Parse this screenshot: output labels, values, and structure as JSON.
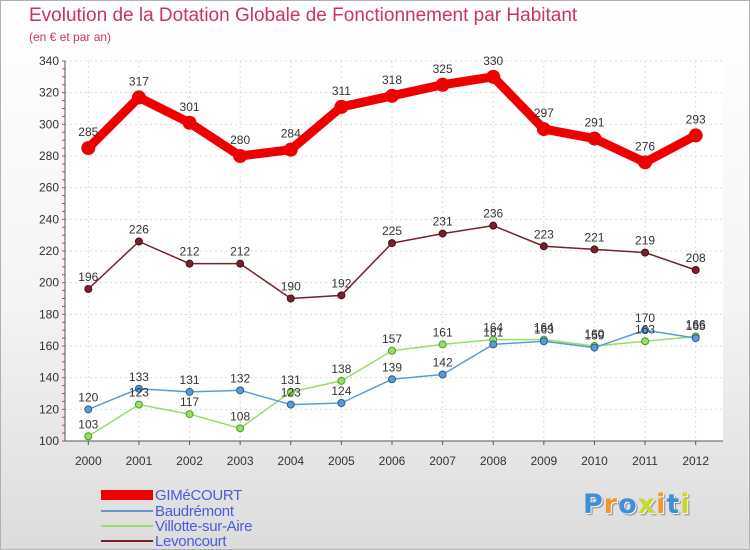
{
  "chart_data": {
    "type": "line",
    "title": "Evolution de la Dotation Globale de Fonctionnement par Habitant",
    "subtitle": "(en € et par an)",
    "x": [
      "2000",
      "2001",
      "2002",
      "2003",
      "2004",
      "2005",
      "2006",
      "2007",
      "2008",
      "2009",
      "2010",
      "2011",
      "2012"
    ],
    "ylim": [
      100,
      340
    ],
    "yticks": [
      100,
      120,
      140,
      160,
      180,
      200,
      220,
      240,
      260,
      280,
      300,
      320,
      340
    ],
    "grid": true,
    "legend_position": "bottom-left",
    "series": [
      {
        "name": "GIMéCOURT",
        "color": "#ee0000",
        "values": [
          285,
          317,
          301,
          280,
          284,
          311,
          318,
          325,
          330,
          297,
          291,
          276,
          293
        ]
      },
      {
        "name": "Baudrémont",
        "color": "#5b9bd5",
        "values": [
          120,
          133,
          131,
          132,
          123,
          124,
          139,
          142,
          161,
          163,
          159,
          170,
          165
        ]
      },
      {
        "name": "Villotte-sur-Aire",
        "color": "#99dd66",
        "values": [
          103,
          123,
          117,
          108,
          131,
          138,
          157,
          161,
          164,
          164,
          160,
          163,
          166
        ]
      },
      {
        "name": "Levoncourt",
        "color": "#7a1f2b",
        "values": [
          196,
          226,
          212,
          212,
          190,
          192,
          225,
          231,
          236,
          223,
          221,
          219,
          208
        ]
      }
    ]
  },
  "logo": {
    "text": "Proxiti",
    "colors": [
      "#3d8fd6",
      "#f0962d",
      "#3d8fd6",
      "#c6d92b",
      "#f0962d",
      "#3d8fd6",
      "#c6d92b"
    ]
  }
}
